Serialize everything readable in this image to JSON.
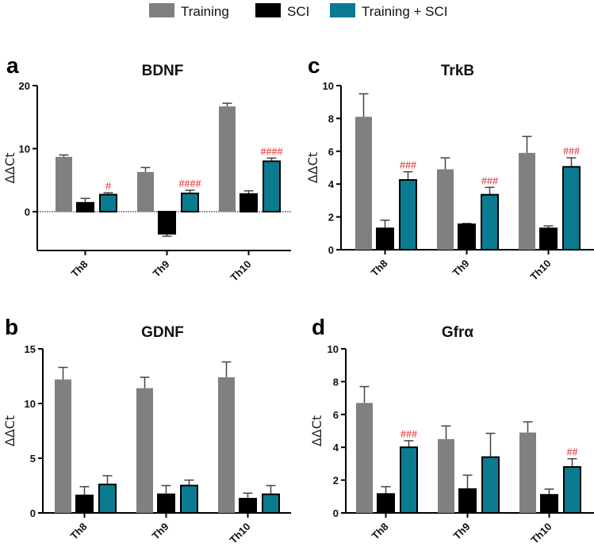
{
  "legend": [
    {
      "label": "Training",
      "color": "#808080"
    },
    {
      "label": "SCI",
      "color": "#000000"
    },
    {
      "label": "Training + SCI",
      "color": "#0b7b91"
    }
  ],
  "chart_data": [
    {
      "id": "a",
      "type": "bar",
      "title": "BDNF",
      "ylabel": "ΔΔCt",
      "categories": [
        "Th8",
        "Th9",
        "Th10"
      ],
      "ylim": [
        -6,
        20
      ],
      "yticks": [
        0,
        10,
        20
      ],
      "series": [
        {
          "name": "Training",
          "values": [
            8.7,
            6.3,
            16.7
          ],
          "errors": [
            0.3,
            0.7,
            0.5
          ]
        },
        {
          "name": "SCI",
          "values": [
            1.4,
            -3.5,
            2.8
          ],
          "errors": [
            0.7,
            0.4,
            0.5
          ]
        },
        {
          "name": "Training + SCI",
          "values": [
            2.7,
            2.9,
            8.0
          ],
          "errors": [
            0.3,
            0.5,
            0.5
          ]
        }
      ],
      "annotations": [
        "#",
        "####",
        "####"
      ]
    },
    {
      "id": "c",
      "type": "bar",
      "title": "TrkB",
      "ylabel": "ΔΔCt",
      "categories": [
        "Th8",
        "Th9",
        "Th10"
      ],
      "ylim": [
        0,
        10
      ],
      "yticks": [
        0,
        2,
        4,
        6,
        8,
        10
      ],
      "series": [
        {
          "name": "Training",
          "values": [
            8.1,
            4.9,
            5.9
          ],
          "errors": [
            1.4,
            0.7,
            1.0
          ]
        },
        {
          "name": "SCI",
          "values": [
            1.3,
            1.55,
            1.3
          ],
          "errors": [
            0.5,
            0.05,
            0.15
          ]
        },
        {
          "name": "Training + SCI",
          "values": [
            4.25,
            3.35,
            5.05
          ],
          "errors": [
            0.5,
            0.45,
            0.55
          ]
        }
      ],
      "annotations": [
        "###",
        "###",
        "###"
      ]
    },
    {
      "id": "b",
      "type": "bar",
      "title": "GDNF",
      "ylabel": "ΔΔCt",
      "categories": [
        "Th8",
        "Th9",
        "Th10"
      ],
      "ylim": [
        0,
        15
      ],
      "yticks": [
        0,
        5,
        10,
        15
      ],
      "series": [
        {
          "name": "Training",
          "values": [
            12.2,
            11.4,
            12.4
          ],
          "errors": [
            1.1,
            1.0,
            1.4
          ]
        },
        {
          "name": "SCI",
          "values": [
            1.6,
            1.7,
            1.3
          ],
          "errors": [
            0.8,
            0.8,
            0.5
          ]
        },
        {
          "name": "Training + SCI",
          "values": [
            2.6,
            2.5,
            1.7
          ],
          "errors": [
            0.8,
            0.5,
            0.8
          ]
        }
      ],
      "annotations": [
        "",
        "",
        ""
      ]
    },
    {
      "id": "d",
      "type": "bar",
      "title": "Gfrα",
      "ylabel": "ΔΔCt",
      "categories": [
        "Th8",
        "Th9",
        "Th10"
      ],
      "ylim": [
        0,
        10
      ],
      "yticks": [
        0,
        2,
        4,
        6,
        8,
        10
      ],
      "series": [
        {
          "name": "Training",
          "values": [
            6.7,
            4.5,
            4.9
          ],
          "errors": [
            1.0,
            0.8,
            0.65
          ]
        },
        {
          "name": "SCI",
          "values": [
            1.15,
            1.45,
            1.1
          ],
          "errors": [
            0.45,
            0.85,
            0.35
          ]
        },
        {
          "name": "Training + SCI",
          "values": [
            4.0,
            3.4,
            2.8
          ],
          "errors": [
            0.4,
            1.45,
            0.5
          ]
        }
      ],
      "annotations": [
        "###",
        "",
        "##"
      ]
    }
  ]
}
